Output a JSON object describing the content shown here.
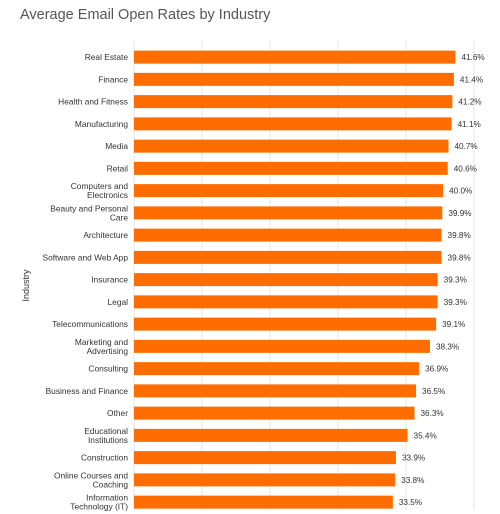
{
  "chart_data": {
    "type": "bar",
    "orientation": "horizontal",
    "title": "Average Email Open Rates by Industry",
    "ylabel": "Industry",
    "xlabel": "",
    "xlim": [
      0,
      44
    ],
    "grid": true,
    "legend": "none",
    "bar_color": "#ff6d01",
    "categories": [
      "Real Estate",
      "Finance",
      "Health and Fitness",
      "Manufacturing",
      "Media",
      "Retail",
      "Computers and Electronics",
      "Beauty and Personal Care",
      "Architecture",
      "Software and Web App",
      "Insurance",
      "Legal",
      "Telecommunications",
      "Marketing and Advertising",
      "Consulting",
      "Business and Finance",
      "Other",
      "Educational Institutions",
      "Construction",
      "Online Courses and Coaching",
      "Information Technology (IT)"
    ],
    "category_lines": [
      [
        "Real Estate"
      ],
      [
        "Finance"
      ],
      [
        "Health and Fitness"
      ],
      [
        "Manufacturing"
      ],
      [
        "Media"
      ],
      [
        "Retail"
      ],
      [
        "Computers and",
        "Electronics"
      ],
      [
        "Beauty and Personal",
        "Care"
      ],
      [
        "Architecture"
      ],
      [
        "Software and Web App"
      ],
      [
        "Insurance"
      ],
      [
        "Legal"
      ],
      [
        "Telecommunications"
      ],
      [
        "Marketing and",
        "Advertising"
      ],
      [
        "Consulting"
      ],
      [
        "Business and Finance"
      ],
      [
        "Other"
      ],
      [
        "Educational",
        "Institutions"
      ],
      [
        "Construction"
      ],
      [
        "Online Courses and",
        "Coaching"
      ],
      [
        "Information",
        "Technology (IT)"
      ]
    ],
    "values": [
      41.6,
      41.4,
      41.2,
      41.1,
      40.7,
      40.6,
      40.0,
      39.9,
      39.8,
      39.8,
      39.3,
      39.3,
      39.1,
      38.3,
      36.9,
      36.5,
      36.3,
      35.4,
      33.9,
      33.8,
      33.5
    ],
    "value_labels": [
      "41.6%",
      "41.4%",
      "41.2%",
      "41.1%",
      "40.7%",
      "40.6%",
      "40.0%",
      "39.9%",
      "39.8%",
      "39.8%",
      "39.3%",
      "39.3%",
      "39.1%",
      "38.3%",
      "36.9%",
      "36.5%",
      "36.3%",
      "35.4%",
      "33.9%",
      "33.8%",
      "33.5%"
    ]
  }
}
